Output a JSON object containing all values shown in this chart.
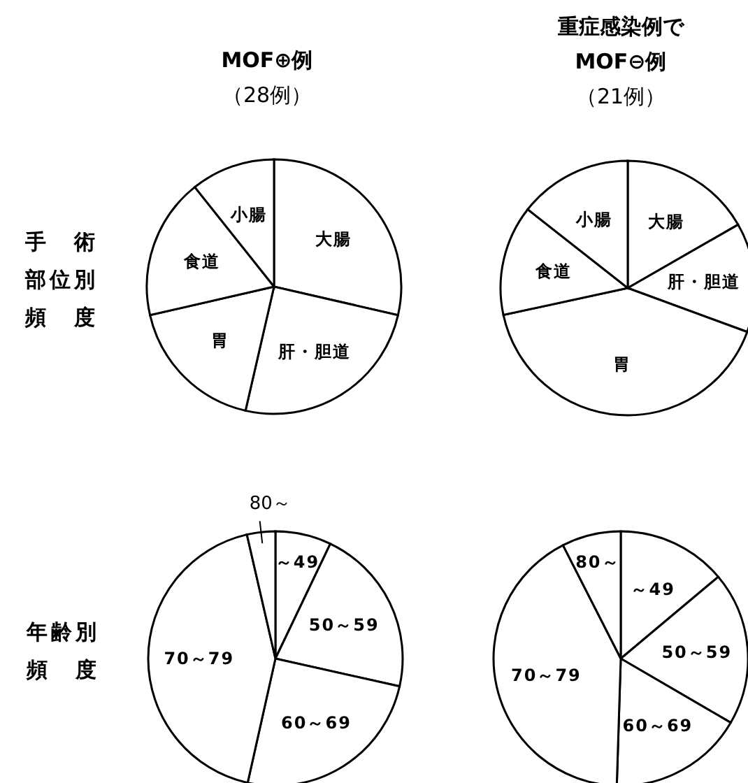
{
  "chart_data": [
    {
      "type": "pie",
      "title": "MOF⊕例",
      "subtitle": "（28例）",
      "ylabel": "手術部位別頻度",
      "categories": [
        "大腸",
        "肝・胆道",
        "胃",
        "食道",
        "小腸"
      ],
      "values": [
        28.6,
        25.0,
        17.8,
        17.9,
        10.7
      ],
      "colors": [
        "#ffffff",
        "#ffffff",
        "#ffffff",
        "#ffffff",
        "#ffffff"
      ]
    },
    {
      "type": "pie",
      "title": "重症感染例でMOF⊖例",
      "subtitle": "（21例）",
      "categories": [
        "大腸",
        "肝・胆道",
        "胃",
        "食道",
        "小腸"
      ],
      "values": [
        16.7,
        13.9,
        41.0,
        14.0,
        14.4
      ],
      "colors": [
        "#ffffff",
        "#ffffff",
        "#ffffff",
        "#ffffff",
        "#ffffff"
      ]
    },
    {
      "type": "pie",
      "ylabel": "年齢別頻度",
      "categories": [
        "～49",
        "50～59",
        "60～69",
        "70～79",
        "80～"
      ],
      "values": [
        7.1,
        21.4,
        25.0,
        42.9,
        3.6
      ],
      "colors": [
        "#ffffff",
        "#ffffff",
        "#ffffff",
        "#ffffff",
        "#ffffff"
      ]
    },
    {
      "type": "pie",
      "categories": [
        "～49",
        "50～59",
        "60～69",
        "70～79",
        "80～"
      ],
      "values": [
        13.9,
        19.5,
        17.1,
        42.0,
        7.5
      ],
      "colors": [
        "#ffffff",
        "#ffffff",
        "#ffffff",
        "#ffffff",
        "#ffffff"
      ]
    }
  ]
}
